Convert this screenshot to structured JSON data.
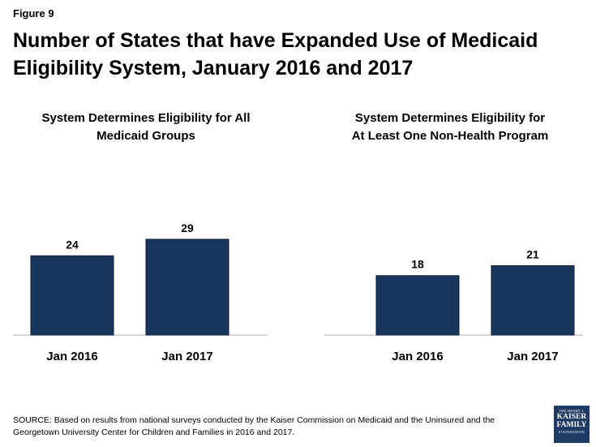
{
  "figure_label": "Figure 9",
  "title": "Number of States that have Expanded Use of Medicaid Eligibility System, January 2016 and 2017",
  "source": "SOURCE: Based on results from national surveys conducted by the Kaiser Commission on Medicaid and the Uninsured and the Georgetown University Center for Children and Families in 2016 and 2017.",
  "logo": {
    "line1": "THE HENRY J.",
    "line2": "KAISER",
    "line3": "FAMILY",
    "line4": "FOUNDATION"
  },
  "colors": {
    "bar": "#1a355b",
    "axis": "#b0b0b0"
  },
  "chart_data": [
    {
      "type": "bar",
      "title": "System Determines Eligibility for All Medicaid Groups",
      "title_lines": [
        "System Determines Eligibility for All",
        "Medicaid Groups"
      ],
      "categories": [
        "Jan 2016",
        "Jan 2017"
      ],
      "values": [
        24,
        29
      ],
      "xlabel": "",
      "ylabel": "",
      "ylim": [
        0,
        29
      ]
    },
    {
      "type": "bar",
      "title": "System Determines Eligibility for At Least One Non-Health Program",
      "title_lines": [
        "System Determines Eligibility for",
        "At Least One Non-Health Program"
      ],
      "categories": [
        "Jan 2016",
        "Jan 2017"
      ],
      "values": [
        18,
        21
      ],
      "xlabel": "",
      "ylabel": "",
      "ylim": [
        0,
        29
      ]
    }
  ]
}
